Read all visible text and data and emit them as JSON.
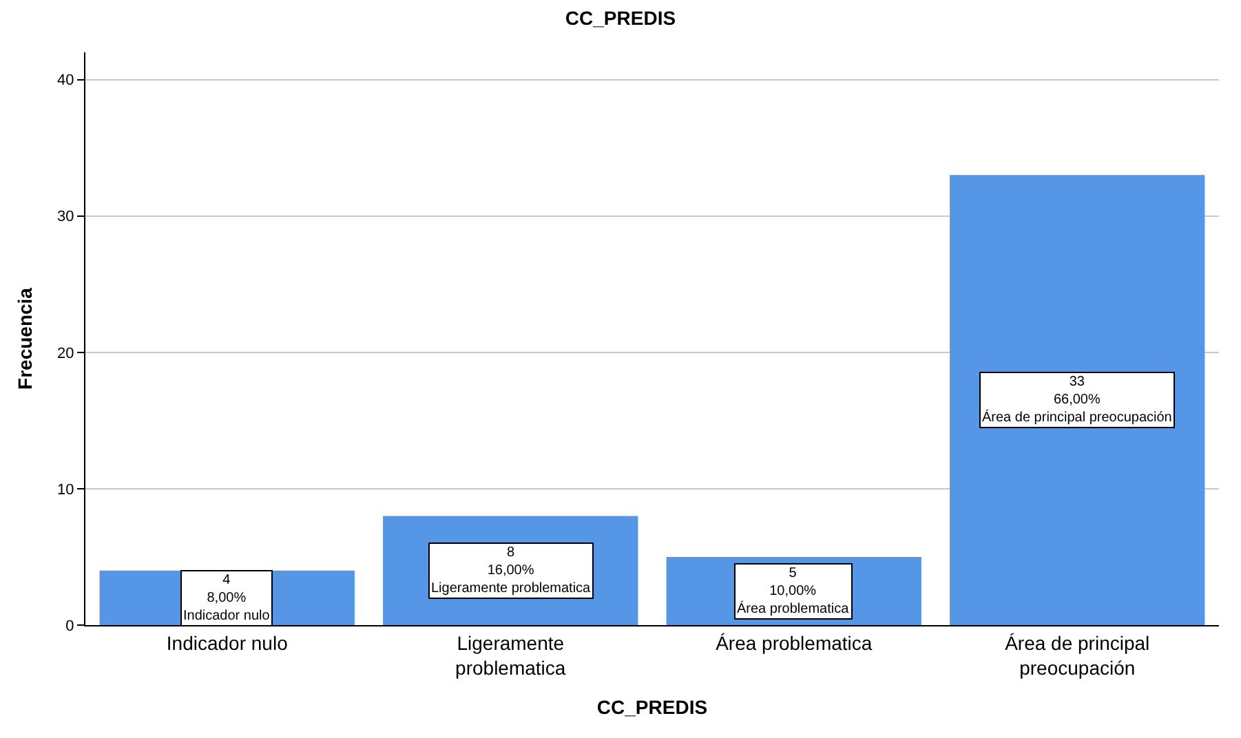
{
  "chart_data": {
    "type": "bar",
    "title": "CC_PREDIS",
    "xlabel": "CC_PREDIS",
    "ylabel": "Frecuencia",
    "categories": [
      "Indicador nulo",
      "Ligeramente problematica",
      "Área problematica",
      "Área de principal preocupación"
    ],
    "values": [
      4,
      8,
      5,
      33
    ],
    "value_labels": [
      "4\n8,00%\nIndicador nulo",
      "8\n16,00%\nLigeramente problematica",
      "5\n10,00%\nÁrea problematica",
      "33\n66,00%\nÁrea de principal preocupación"
    ],
    "color": "#5596e6",
    "ylim": [
      0,
      42
    ],
    "yticks": [
      0,
      10,
      20,
      30,
      40
    ],
    "grid": "y"
  }
}
